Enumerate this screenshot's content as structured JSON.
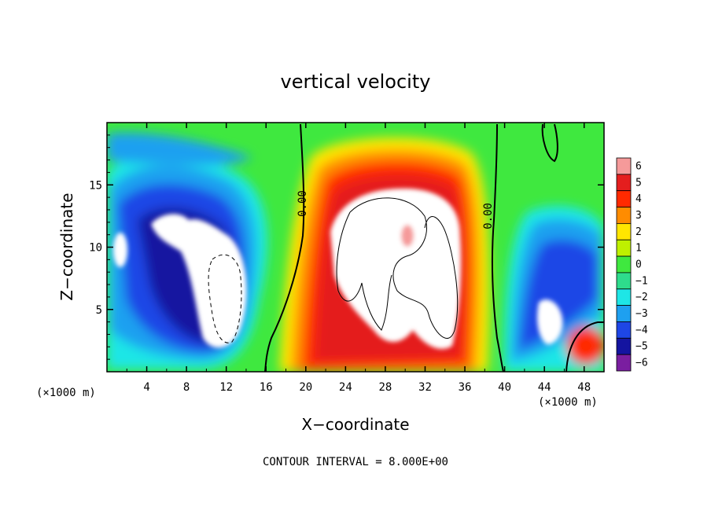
{
  "chart_data": {
    "type": "heatmap",
    "title": "vertical velocity",
    "xlabel": "X−coordinate",
    "ylabel": "Z−coordinate",
    "x_unit_left": "(×1000 m)",
    "x_unit_right": "(×1000 m)",
    "xlim": [
      0,
      50
    ],
    "ylim": [
      0,
      20
    ],
    "x_ticks": [
      4,
      8,
      12,
      16,
      20,
      24,
      28,
      32,
      36,
      40,
      44,
      48
    ],
    "y_ticks": [
      5,
      10,
      15
    ],
    "contour_interval_text": "CONTOUR INTERVAL = 8.000E+00",
    "contour_labels": [
      {
        "text": "0.00",
        "x": 20,
        "y": 13.5
      },
      {
        "text": "0.00",
        "x": 38.7,
        "y": 12.5
      }
    ],
    "colorbar": {
      "placement": "right",
      "levels": [
        6,
        5,
        4,
        3,
        2,
        1,
        0,
        -1,
        -2,
        -3,
        -4,
        -5,
        -6
      ],
      "labels": [
        "6",
        "5",
        "4",
        "3",
        "2",
        "1",
        "0",
        "−1",
        "−2",
        "−3",
        "−4",
        "−5",
        "−6"
      ],
      "colors": [
        "#f59a9a",
        "#e41e1e",
        "#ff2a00",
        "#ff8c00",
        "#ffe600",
        "#bff000",
        "#3fe83f",
        "#2edc8c",
        "#1ee6e6",
        "#1ea0f0",
        "#1e46e6",
        "#1414a0",
        "#7a1ea0"
      ]
    },
    "regions": [
      {
        "name": "left-downdraft",
        "x_range": [
          0,
          16
        ],
        "z_range": [
          1,
          16
        ],
        "value_min": -6
      },
      {
        "name": "central-updraft",
        "x_range": [
          18,
          38
        ],
        "z_range": [
          1,
          17
        ],
        "value_max": 6
      },
      {
        "name": "right-downdraft",
        "x_range": [
          40,
          50
        ],
        "z_range": [
          1,
          12
        ],
        "value_min": -6
      }
    ]
  }
}
